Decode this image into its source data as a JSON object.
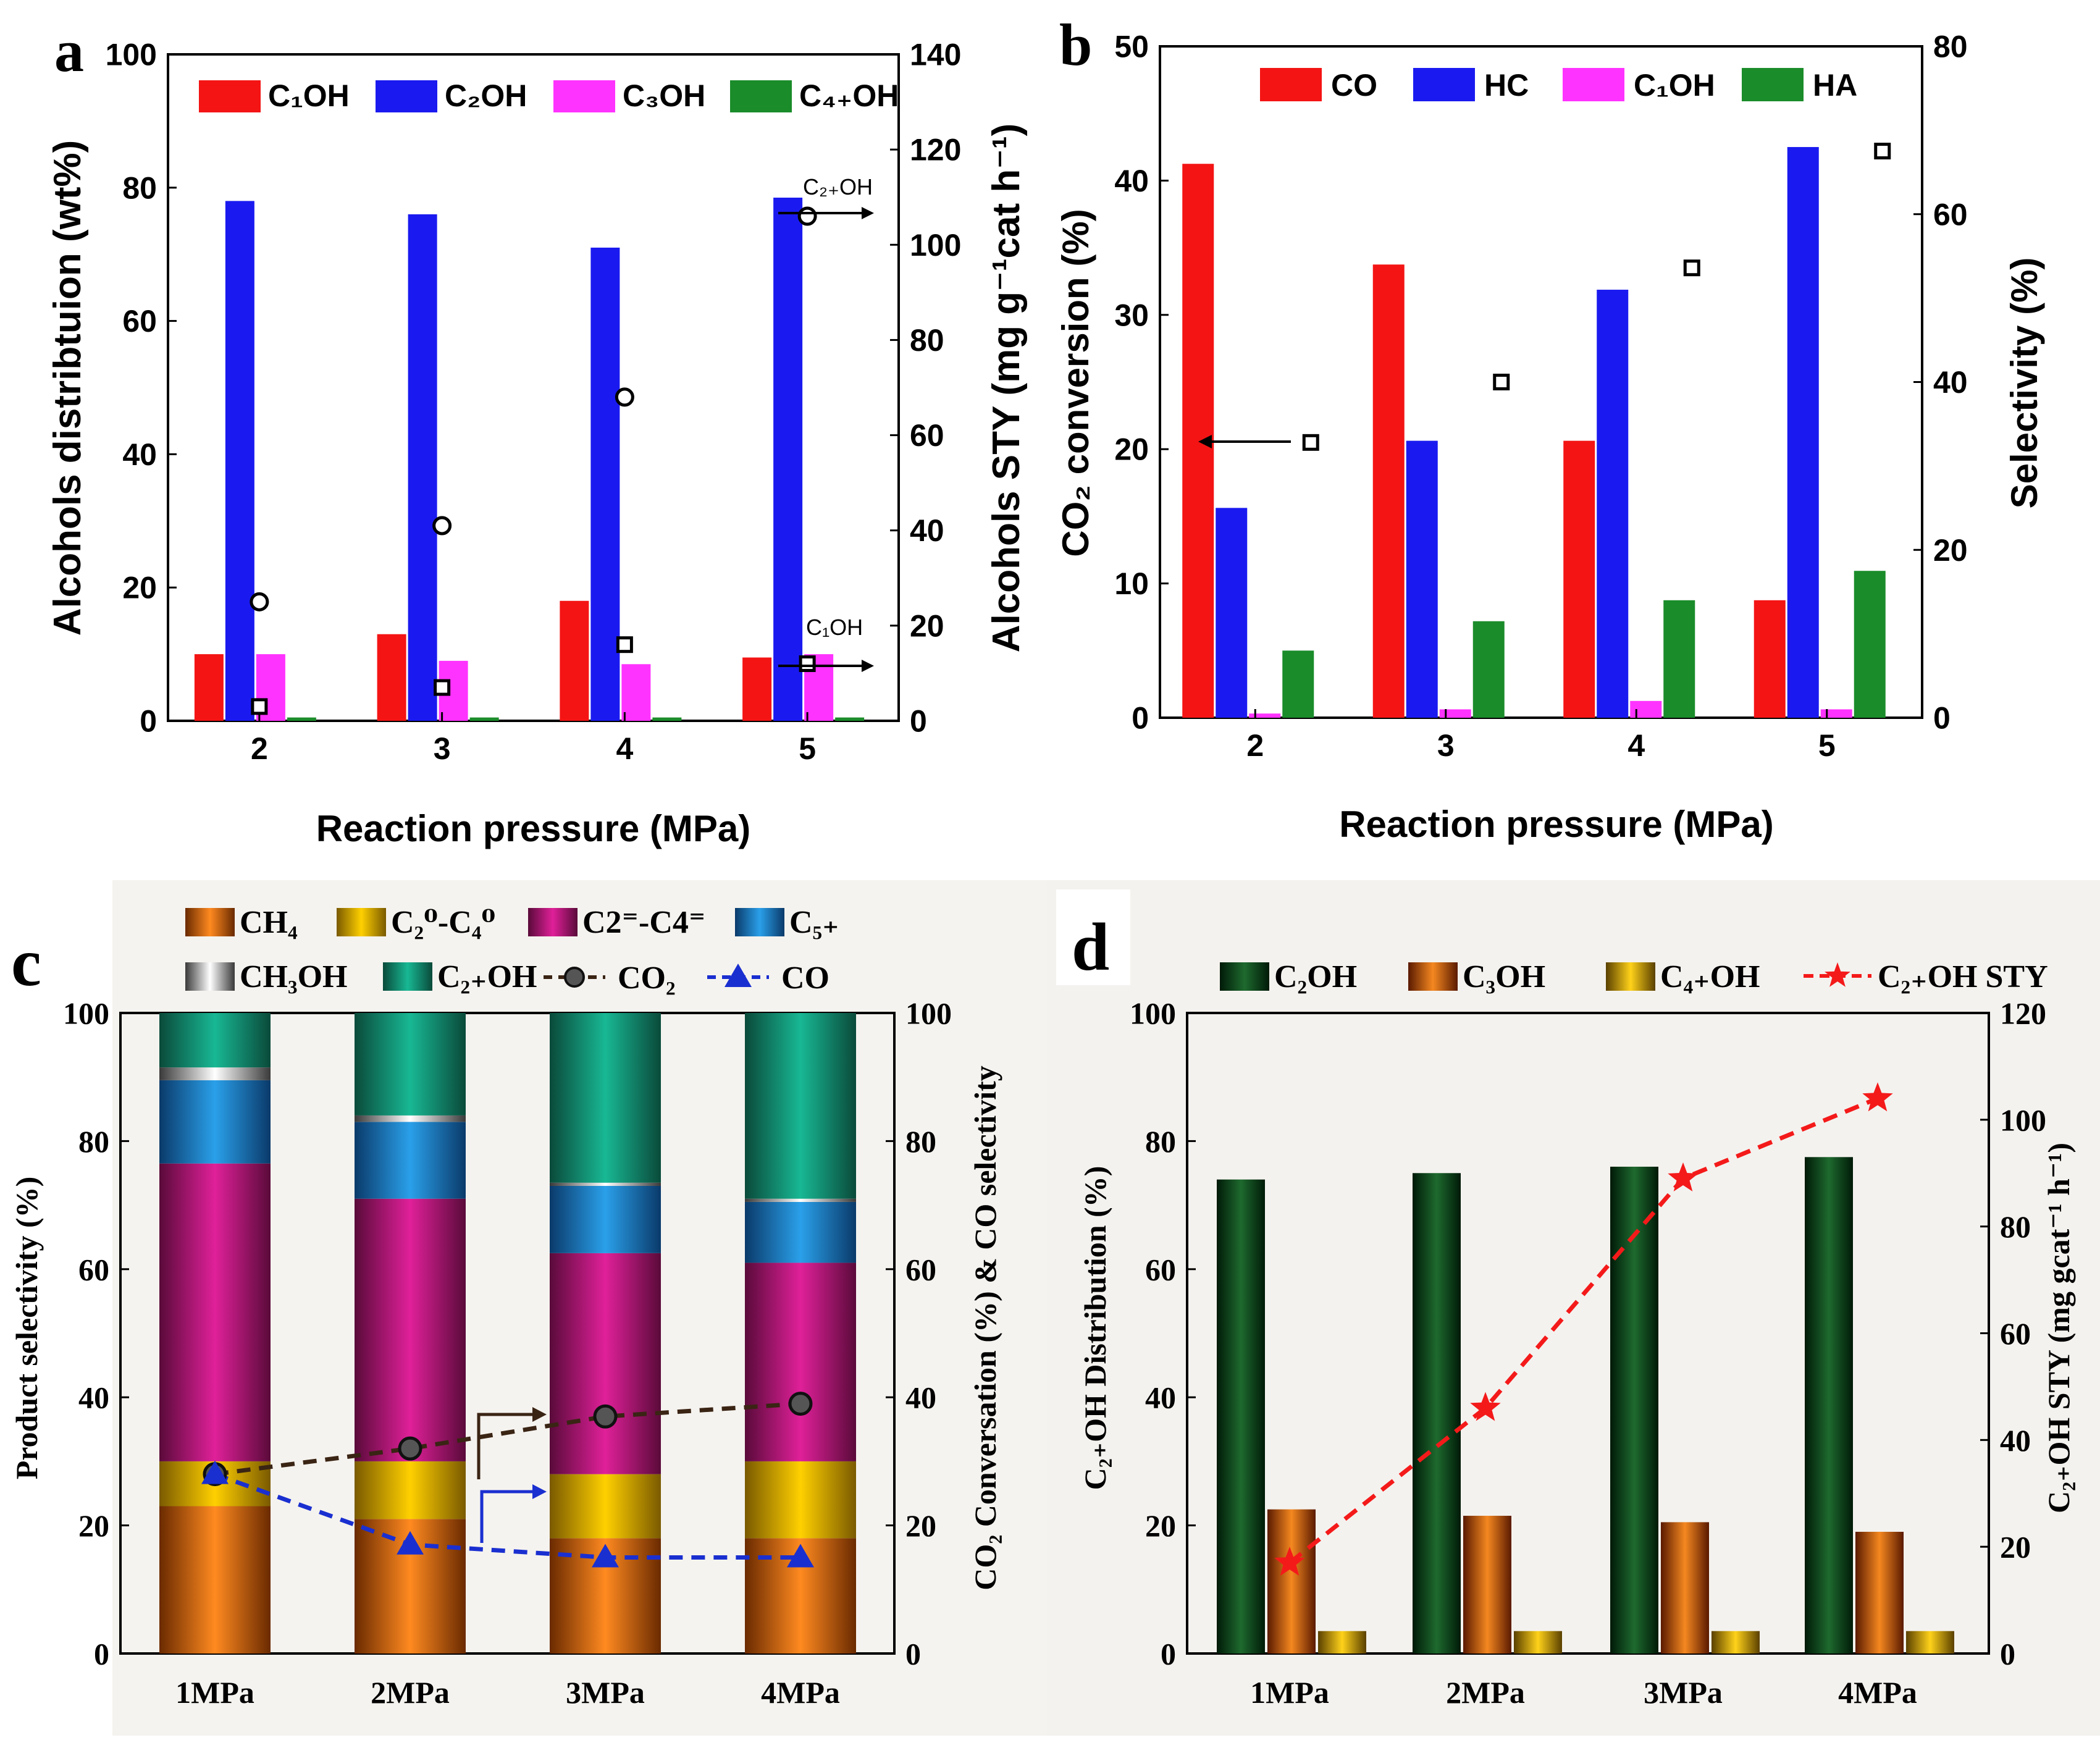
{
  "colors": {
    "red": "#f41414",
    "blue": "#1a1af0",
    "magenta": "#ff33ff",
    "green": "#1a8c2a",
    "ch4": "#f07818",
    "c2c4_par": "#f2c400",
    "c2c4_ole": "#d9188c",
    "c5": "#1f8fd8",
    "ch3oh": "#cfcfcf",
    "c2oh": "#12a88a",
    "co2_line": "#3a2414",
    "co_line": "#1a2fd0",
    "dark_green": "#0c4d1c",
    "orange": "#e36b10",
    "yellow": "#f0bf00",
    "star": "#f41a1a",
    "panel_c_bg": "#f5f3ef",
    "panel_d_bg": "#f4f2ee"
  },
  "panel_labels": {
    "a": "a",
    "b": "b",
    "c": "c",
    "d": "d"
  },
  "chart_data": [
    {
      "panel": "a",
      "type": "bar",
      "title": "",
      "xlabel": "Reaction pressure (MPa)",
      "ylabel": "Alcohols distribtuion (wt%)",
      "y2label": "Alcohols STY (mg g⁻¹cat h⁻¹)",
      "categories": [
        "2",
        "3",
        "4",
        "5"
      ],
      "ylim": [
        0,
        100
      ],
      "yticks": [
        "0",
        "20",
        "40",
        "60",
        "80",
        "100"
      ],
      "y2lim": [
        0,
        140
      ],
      "y2ticks": [
        "0",
        "20",
        "40",
        "60",
        "80",
        "100",
        "120",
        "140"
      ],
      "legend": [
        "C₁OH",
        "C₂OH",
        "C₃OH",
        "C₄₊OH"
      ],
      "series": [
        {
          "name": "C₁OH",
          "values": [
            10,
            13,
            18,
            9.5
          ]
        },
        {
          "name": "C₂OH",
          "values": [
            78,
            76,
            71,
            78.5
          ]
        },
        {
          "name": "C₃OH",
          "values": [
            10,
            9,
            8.5,
            10
          ]
        },
        {
          "name": "C₄₊OH",
          "values": [
            0.5,
            0.5,
            0.5,
            0.5
          ]
        }
      ],
      "sty_c2oh": [
        25,
        41,
        68,
        106
      ],
      "sty_c1oh": [
        3,
        7,
        16,
        12
      ],
      "annotations": [
        "C₂₊OH",
        "C₁OH"
      ]
    },
    {
      "panel": "b",
      "type": "bar",
      "title": "",
      "xlabel": "Reaction pressure (MPa)",
      "ylabel": "CO₂ conversion (%)",
      "y2label": "Selectivity (%)",
      "categories": [
        "2",
        "3",
        "4",
        "5"
      ],
      "ylim": [
        0,
        50
      ],
      "yticks": [
        "0",
        "10",
        "20",
        "30",
        "40",
        "50"
      ],
      "y2lim": [
        0,
        80
      ],
      "y2ticks": [
        "0",
        "20",
        "40",
        "60",
        "80"
      ],
      "legend": [
        "CO",
        "HC",
        "C₁OH",
        "HA"
      ],
      "series": [
        {
          "name": "CO",
          "values": [
            66,
            54,
            33,
            14
          ]
        },
        {
          "name": "HC",
          "values": [
            25,
            33,
            51,
            68
          ]
        },
        {
          "name": "C₁OH",
          "values": [
            0.5,
            1,
            2,
            1
          ]
        },
        {
          "name": "HA",
          "values": [
            8,
            11.5,
            14,
            17.5
          ]
        }
      ],
      "co2_conversion": [
        20.5,
        25,
        33.5,
        42.2
      ]
    },
    {
      "panel": "c",
      "type": "bar",
      "title": "",
      "xlabel": "",
      "ylabel": "Product selectivity (%)",
      "y2label": "CO₂ Conversation (%) & CO selectivity",
      "categories": [
        "1MPa",
        "2MPa",
        "3MPa",
        "4MPa"
      ],
      "ylim": [
        0,
        100
      ],
      "yticks": [
        "0",
        "20",
        "40",
        "60",
        "80",
        "100"
      ],
      "y2lim": [
        0,
        100
      ],
      "y2ticks": [
        "0",
        "20",
        "40",
        "60",
        "80",
        "100"
      ],
      "legend": [
        "CH₄",
        "C₂⁰-C₄⁰",
        "C2⁼-C4⁼",
        "C₅₊",
        "CH₃OH",
        "C₂₊OH",
        "CO₂",
        "CO"
      ],
      "series": [
        {
          "name": "CH₄",
          "values": [
            23,
            21,
            18,
            18
          ]
        },
        {
          "name": "C₂⁰-C₄⁰",
          "values": [
            7,
            9,
            10,
            12
          ]
        },
        {
          "name": "C2⁼-C4⁼",
          "values": [
            46.5,
            41,
            34.5,
            31
          ]
        },
        {
          "name": "C₅₊",
          "values": [
            13,
            12,
            10.5,
            9.5
          ]
        },
        {
          "name": "CH₃OH",
          "values": [
            2,
            1,
            0.5,
            0.5
          ]
        },
        {
          "name": "C₂₊OH",
          "values": [
            8.5,
            16,
            26.5,
            29
          ]
        }
      ],
      "co2_conversion": [
        28,
        32,
        37,
        39
      ],
      "co_selectivity": [
        28,
        17,
        15,
        15
      ]
    },
    {
      "panel": "d",
      "type": "bar",
      "title": "",
      "xlabel": "",
      "ylabel": "C₂₊OH  Distribution (%)",
      "y2label": "C₂₊OH  STY (mg gcat⁻¹ h⁻¹)",
      "categories": [
        "1MPa",
        "2MPa",
        "3MPa",
        "4MPa"
      ],
      "ylim": [
        0,
        100
      ],
      "yticks": [
        "0",
        "20",
        "40",
        "60",
        "80",
        "100"
      ],
      "y2lim": [
        0,
        120
      ],
      "y2ticks": [
        "0",
        "20",
        "40",
        "60",
        "80",
        "100",
        "120"
      ],
      "legend": [
        "C₂OH",
        "C₃OH",
        "C₄₊OH",
        "C₂₊OH STY"
      ],
      "series": [
        {
          "name": "C₂OH",
          "values": [
            74,
            75,
            76,
            77.5
          ]
        },
        {
          "name": "C₃OH",
          "values": [
            22.5,
            21.5,
            20.5,
            19
          ]
        },
        {
          "name": "C₄₊OH",
          "values": [
            3.5,
            3.5,
            3.5,
            3.5
          ]
        }
      ],
      "sty": [
        17,
        46,
        89,
        104
      ]
    }
  ]
}
